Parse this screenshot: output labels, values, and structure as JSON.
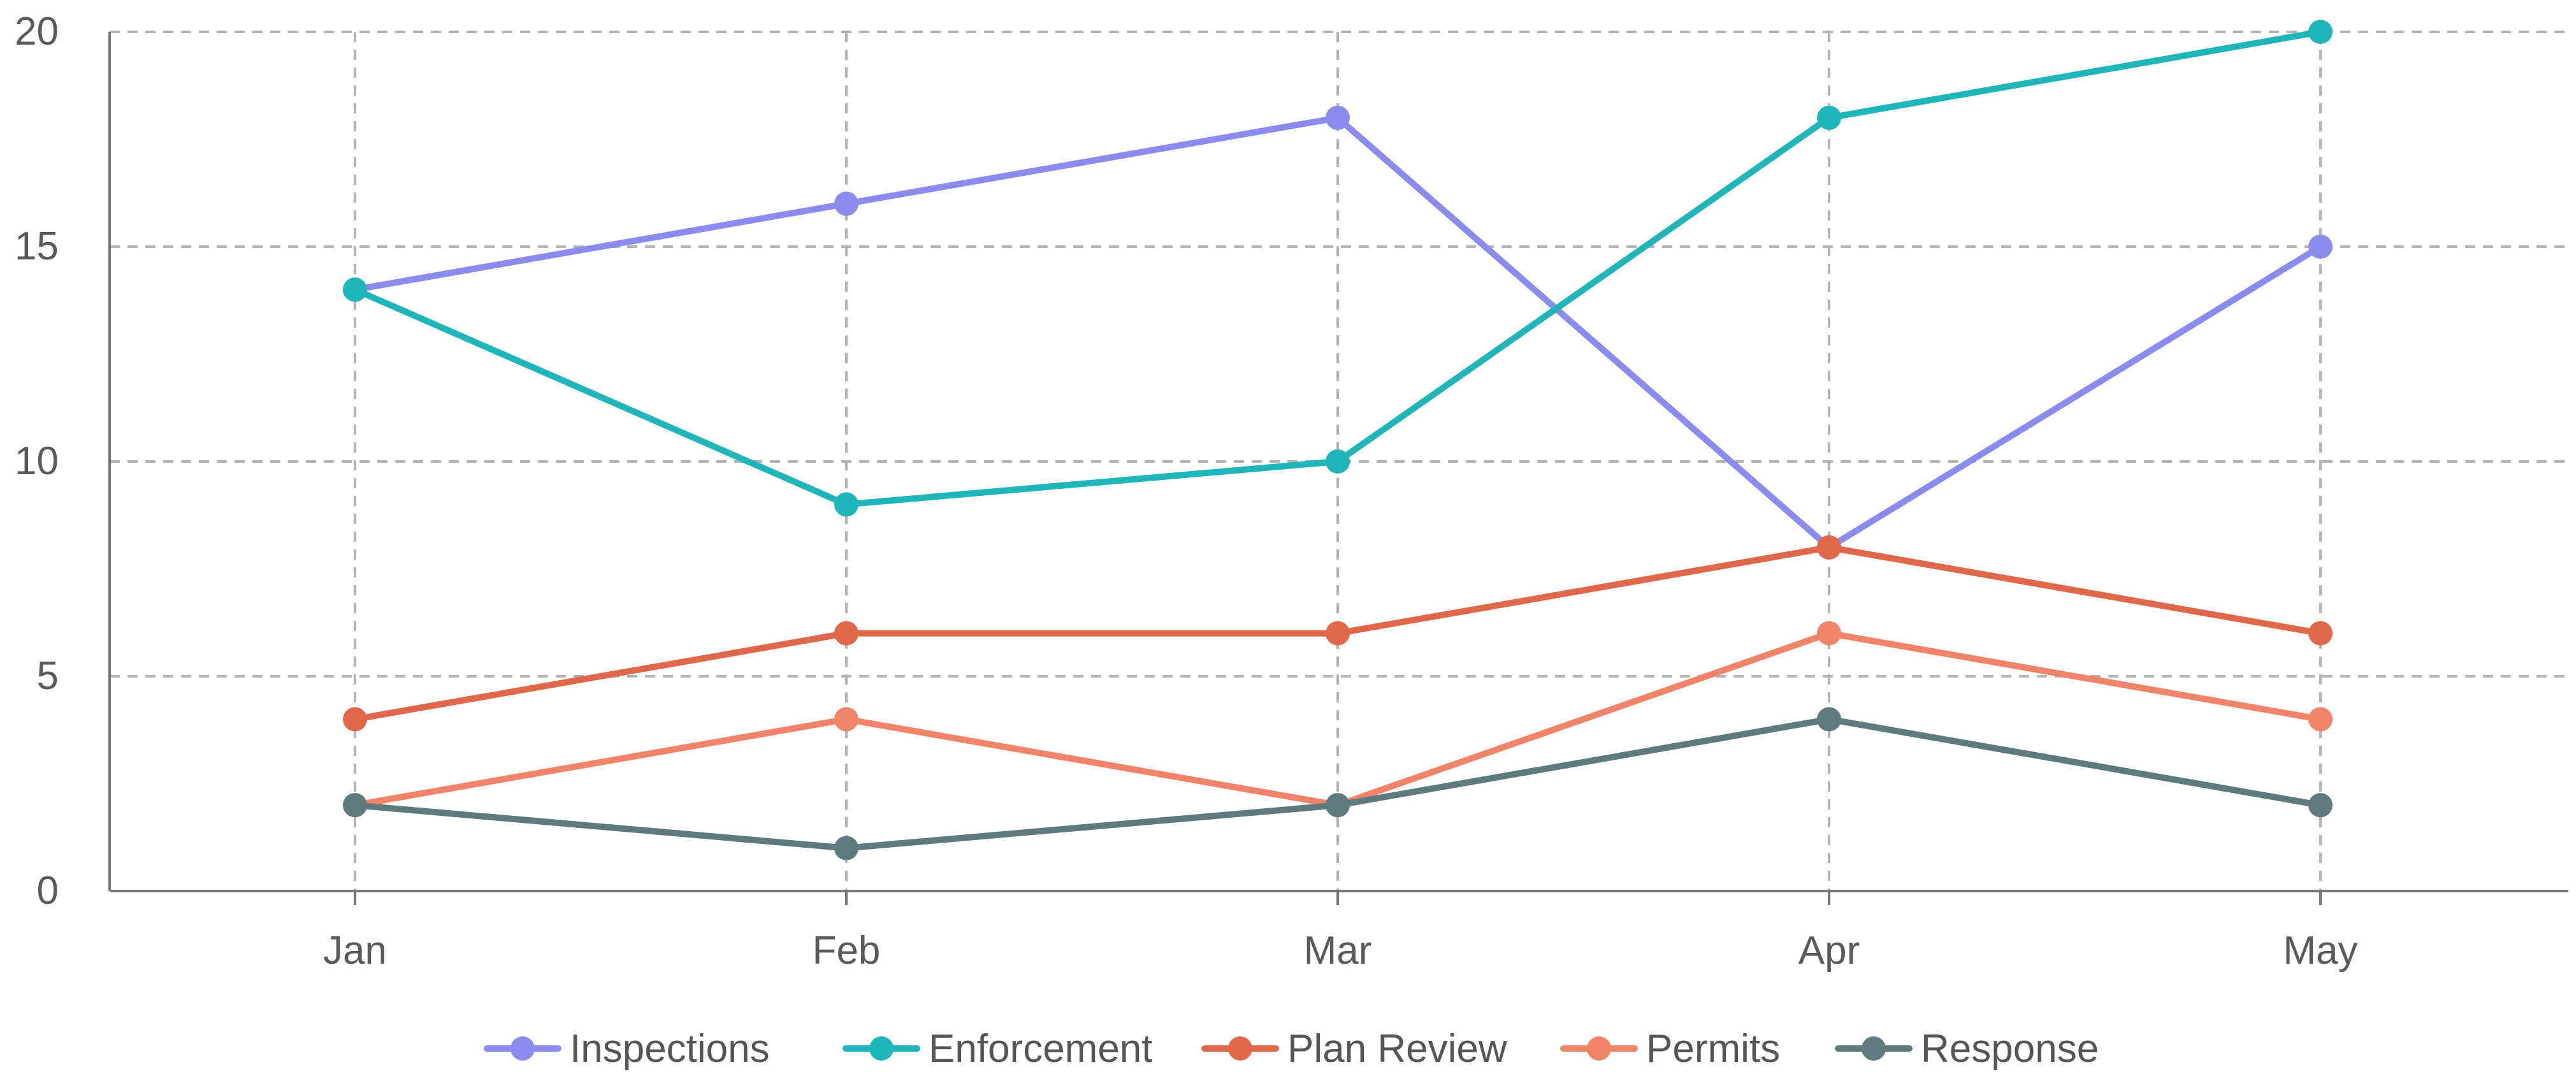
{
  "chart_data": {
    "type": "line",
    "categories": [
      "Jan",
      "Feb",
      "Mar",
      "Apr",
      "May"
    ],
    "series": [
      {
        "name": "Inspections",
        "color": "#8b8bee",
        "values": [
          14,
          16,
          18,
          8,
          15
        ]
      },
      {
        "name": "Enforcement",
        "color": "#1fb5b9",
        "values": [
          14,
          9,
          10,
          18,
          20
        ]
      },
      {
        "name": "Plan Review",
        "color": "#e0684a",
        "values": [
          4,
          6,
          6,
          8,
          6
        ]
      },
      {
        "name": "Permits",
        "color": "#f08468",
        "values": [
          2,
          4,
          2,
          6,
          4
        ]
      },
      {
        "name": "Response",
        "color": "#5f7a7c",
        "values": [
          2,
          1,
          2,
          4,
          2
        ]
      }
    ],
    "yticks": [
      "0",
      "5",
      "10",
      "15",
      "20"
    ],
    "ylim": [
      0,
      20
    ],
    "grid": true,
    "grid_style": "dashed",
    "legend_position": "bottom-center",
    "title": "",
    "xlabel": "",
    "ylabel": ""
  }
}
